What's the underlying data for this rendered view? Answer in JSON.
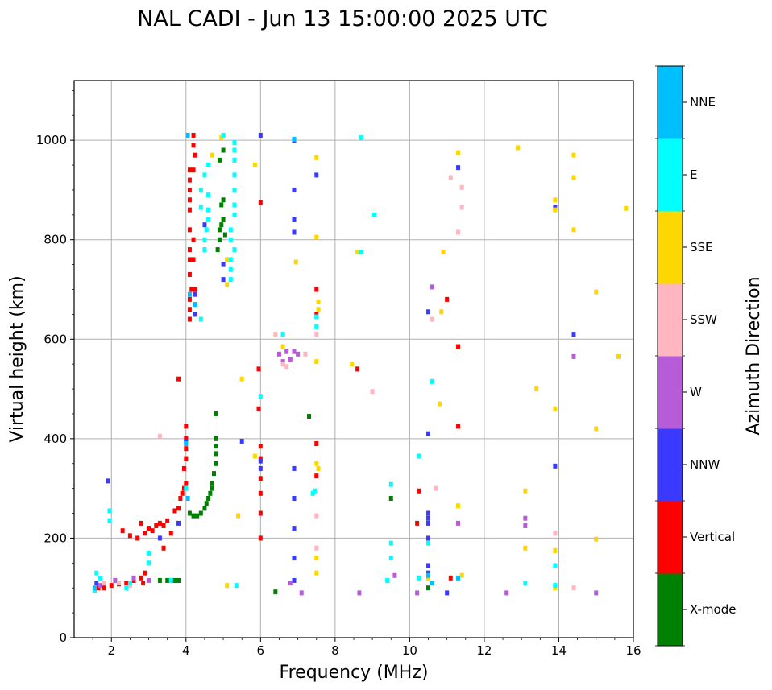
{
  "chart_data": {
    "type": "scatter",
    "title": "NAL CADI - Jun 13 15:00:00 2025 UTC",
    "xlabel": "Frequency (MHz)",
    "ylabel": "Virtual height (km)",
    "xlim": [
      1,
      16
    ],
    "ylim": [
      0,
      1120
    ],
    "xticks": [
      2,
      4,
      6,
      8,
      10,
      12,
      14,
      16
    ],
    "yticks": [
      0,
      200,
      400,
      600,
      800,
      1000
    ],
    "grid": true,
    "colorbar": {
      "title": "Azimuth Direction",
      "categories": [
        {
          "name": "X-mode",
          "color": "#008000"
        },
        {
          "name": "Vertical",
          "color": "#ff0000"
        },
        {
          "name": "NNW",
          "color": "#3a3aff"
        },
        {
          "name": "W",
          "color": "#b65cd8"
        },
        {
          "name": "SSW",
          "color": "#ffb6c1"
        },
        {
          "name": "SSE",
          "color": "#ffd700"
        },
        {
          "name": "E",
          "color": "#00ffff"
        },
        {
          "name": "NNE",
          "color": "#00bfff"
        }
      ]
    },
    "series": [
      {
        "name": "X-mode",
        "points": [
          [
            3.3,
            115
          ],
          [
            3.5,
            115
          ],
          [
            3.6,
            115
          ],
          [
            3.7,
            115
          ],
          [
            3.8,
            115
          ],
          [
            4.1,
            250
          ],
          [
            4.2,
            245
          ],
          [
            4.3,
            245
          ],
          [
            4.4,
            250
          ],
          [
            4.5,
            260
          ],
          [
            4.55,
            270
          ],
          [
            4.6,
            280
          ],
          [
            4.65,
            290
          ],
          [
            4.7,
            300
          ],
          [
            4.7,
            310
          ],
          [
            4.75,
            330
          ],
          [
            4.8,
            350
          ],
          [
            4.8,
            370
          ],
          [
            4.8,
            385
          ],
          [
            4.8,
            400
          ],
          [
            4.8,
            450
          ],
          [
            4.9,
            800
          ],
          [
            4.9,
            820
          ],
          [
            4.95,
            830
          ],
          [
            5.0,
            840
          ],
          [
            4.95,
            870
          ],
          [
            5.0,
            880
          ],
          [
            4.9,
            960
          ],
          [
            5.0,
            980
          ],
          [
            4.85,
            780
          ],
          [
            5.05,
            810
          ],
          [
            6.4,
            92
          ],
          [
            7.3,
            445
          ],
          [
            9.5,
            280
          ],
          [
            10.5,
            100
          ]
        ]
      },
      {
        "name": "Vertical",
        "points": [
          [
            1.55,
            95
          ],
          [
            1.65,
            100
          ],
          [
            1.8,
            100
          ],
          [
            2.0,
            105
          ],
          [
            2.2,
            108
          ],
          [
            2.4,
            110
          ],
          [
            2.6,
            115
          ],
          [
            2.8,
            120
          ],
          [
            2.9,
            130
          ],
          [
            2.85,
            110
          ],
          [
            2.3,
            215
          ],
          [
            2.5,
            205
          ],
          [
            2.7,
            200
          ],
          [
            2.8,
            230
          ],
          [
            2.9,
            210
          ],
          [
            3.0,
            220
          ],
          [
            3.1,
            215
          ],
          [
            3.2,
            225
          ],
          [
            3.3,
            230
          ],
          [
            3.4,
            225
          ],
          [
            3.5,
            235
          ],
          [
            3.6,
            210
          ],
          [
            3.4,
            180
          ],
          [
            3.7,
            255
          ],
          [
            3.8,
            260
          ],
          [
            3.85,
            280
          ],
          [
            3.9,
            290
          ],
          [
            3.95,
            300
          ],
          [
            4.0,
            310
          ],
          [
            3.95,
            340
          ],
          [
            4.0,
            360
          ],
          [
            4.0,
            380
          ],
          [
            4.0,
            400
          ],
          [
            4.0,
            425
          ],
          [
            3.8,
            520
          ],
          [
            4.1,
            640
          ],
          [
            4.1,
            660
          ],
          [
            4.1,
            680
          ],
          [
            4.15,
            700
          ],
          [
            4.1,
            730
          ],
          [
            4.1,
            760
          ],
          [
            4.1,
            780
          ],
          [
            4.1,
            820
          ],
          [
            4.1,
            860
          ],
          [
            4.1,
            880
          ],
          [
            4.1,
            900
          ],
          [
            4.1,
            920
          ],
          [
            4.1,
            940
          ],
          [
            4.25,
            700
          ],
          [
            4.2,
            760
          ],
          [
            4.2,
            800
          ],
          [
            4.2,
            940
          ],
          [
            4.25,
            970
          ],
          [
            4.2,
            990
          ],
          [
            4.2,
            1010
          ],
          [
            6.0,
            200
          ],
          [
            6.0,
            250
          ],
          [
            6.0,
            290
          ],
          [
            6.0,
            320
          ],
          [
            6.0,
            360
          ],
          [
            6.0,
            385
          ],
          [
            5.95,
            460
          ],
          [
            5.95,
            540
          ],
          [
            6.0,
            875
          ],
          [
            7.5,
            325
          ],
          [
            7.5,
            390
          ],
          [
            7.5,
            650
          ],
          [
            7.5,
            700
          ],
          [
            8.6,
            540
          ],
          [
            10.2,
            230
          ],
          [
            10.25,
            295
          ],
          [
            11.1,
            120
          ],
          [
            11.3,
            425
          ],
          [
            11.3,
            585
          ],
          [
            11.0,
            680
          ]
        ]
      },
      {
        "name": "NNW",
        "points": [
          [
            1.6,
            110
          ],
          [
            1.9,
            315
          ],
          [
            3.3,
            200
          ],
          [
            3.8,
            230
          ],
          [
            4.0,
            395
          ],
          [
            4.25,
            650
          ],
          [
            4.25,
            690
          ],
          [
            4.5,
            830
          ],
          [
            5.0,
            720
          ],
          [
            5.0,
            750
          ],
          [
            5.5,
            395
          ],
          [
            6.0,
            340
          ],
          [
            6.0,
            355
          ],
          [
            6.0,
            1010
          ],
          [
            6.9,
            1000
          ],
          [
            6.9,
            900
          ],
          [
            6.9,
            840
          ],
          [
            6.9,
            815
          ],
          [
            6.9,
            340
          ],
          [
            6.9,
            280
          ],
          [
            6.9,
            220
          ],
          [
            6.9,
            160
          ],
          [
            6.9,
            115
          ],
          [
            7.5,
            930
          ],
          [
            10.5,
            250
          ],
          [
            10.5,
            240
          ],
          [
            10.5,
            230
          ],
          [
            10.5,
            200
          ],
          [
            10.5,
            145
          ],
          [
            10.5,
            130
          ],
          [
            10.5,
            410
          ],
          [
            10.5,
            655
          ],
          [
            11.3,
            945
          ],
          [
            11.0,
            90
          ],
          [
            13.9,
            345
          ],
          [
            13.9,
            865
          ],
          [
            14.4,
            610
          ]
        ]
      },
      {
        "name": "W",
        "points": [
          [
            1.7,
            105
          ],
          [
            2.1,
            115
          ],
          [
            2.6,
            120
          ],
          [
            3.0,
            115
          ],
          [
            6.5,
            570
          ],
          [
            6.6,
            555
          ],
          [
            6.7,
            575
          ],
          [
            6.8,
            560
          ],
          [
            6.9,
            575
          ],
          [
            7.0,
            570
          ],
          [
            8.65,
            90
          ],
          [
            9.6,
            125
          ],
          [
            10.2,
            90
          ],
          [
            10.6,
            705
          ],
          [
            11.3,
            230
          ],
          [
            12.6,
            90
          ],
          [
            13.1,
            240
          ],
          [
            13.1,
            225
          ],
          [
            14.4,
            565
          ],
          [
            15.0,
            90
          ],
          [
            6.8,
            110
          ],
          [
            7.1,
            90
          ]
        ]
      },
      {
        "name": "SSW",
        "points": [
          [
            1.8,
            110
          ],
          [
            2.2,
            110
          ],
          [
            2.5,
            105
          ],
          [
            3.3,
            405
          ],
          [
            6.4,
            610
          ],
          [
            6.6,
            550
          ],
          [
            6.7,
            545
          ],
          [
            7.2,
            570
          ],
          [
            7.5,
            610
          ],
          [
            9.0,
            495
          ],
          [
            10.6,
            640
          ],
          [
            10.7,
            300
          ],
          [
            11.1,
            925
          ],
          [
            11.4,
            905
          ],
          [
            11.4,
            865
          ],
          [
            11.3,
            815
          ],
          [
            13.9,
            210
          ],
          [
            14.4,
            100
          ],
          [
            7.5,
            180
          ],
          [
            7.5,
            245
          ]
        ]
      },
      {
        "name": "SSE",
        "points": [
          [
            4.7,
            970
          ],
          [
            4.95,
            1005
          ],
          [
            5.0,
            1010
          ],
          [
            5.1,
            760
          ],
          [
            5.1,
            710
          ],
          [
            5.4,
            245
          ],
          [
            5.1,
            105
          ],
          [
            5.5,
            520
          ],
          [
            5.85,
            950
          ],
          [
            5.85,
            365
          ],
          [
            6.6,
            585
          ],
          [
            6.95,
            755
          ],
          [
            7.5,
            965
          ],
          [
            7.5,
            805
          ],
          [
            7.55,
            675
          ],
          [
            7.55,
            660
          ],
          [
            7.5,
            555
          ],
          [
            7.5,
            350
          ],
          [
            7.55,
            340
          ],
          [
            7.5,
            160
          ],
          [
            7.5,
            130
          ],
          [
            8.45,
            550
          ],
          [
            8.6,
            775
          ],
          [
            10.5,
            120
          ],
          [
            10.8,
            470
          ],
          [
            10.85,
            655
          ],
          [
            10.9,
            775
          ],
          [
            11.3,
            975
          ],
          [
            11.3,
            265
          ],
          [
            11.4,
            125
          ],
          [
            12.9,
            985
          ],
          [
            13.1,
            295
          ],
          [
            13.1,
            180
          ],
          [
            13.4,
            500
          ],
          [
            13.9,
            880
          ],
          [
            13.9,
            860
          ],
          [
            13.9,
            460
          ],
          [
            13.9,
            175
          ],
          [
            13.9,
            100
          ],
          [
            14.4,
            970
          ],
          [
            14.4,
            925
          ],
          [
            14.4,
            820
          ],
          [
            15.0,
            695
          ],
          [
            15.0,
            420
          ],
          [
            15.0,
            198
          ],
          [
            15.6,
            565
          ],
          [
            15.8,
            863
          ]
        ]
      },
      {
        "name": "E",
        "points": [
          [
            1.55,
            95
          ],
          [
            1.6,
            130
          ],
          [
            1.7,
            120
          ],
          [
            1.95,
            255
          ],
          [
            1.95,
            235
          ],
          [
            2.4,
            100
          ],
          [
            2.5,
            110
          ],
          [
            3.0,
            170
          ],
          [
            3.0,
            150
          ],
          [
            3.6,
            115
          ],
          [
            4.0,
            300
          ],
          [
            4.4,
            640
          ],
          [
            4.5,
            780
          ],
          [
            4.5,
            800
          ],
          [
            4.55,
            820
          ],
          [
            4.6,
            840
          ],
          [
            4.6,
            860
          ],
          [
            4.4,
            900
          ],
          [
            4.5,
            930
          ],
          [
            4.6,
            950
          ],
          [
            4.6,
            890
          ],
          [
            4.4,
            865
          ],
          [
            5.2,
            720
          ],
          [
            5.2,
            740
          ],
          [
            5.2,
            760
          ],
          [
            5.3,
            780
          ],
          [
            5.2,
            800
          ],
          [
            5.2,
            820
          ],
          [
            5.3,
            850
          ],
          [
            5.3,
            870
          ],
          [
            5.3,
            900
          ],
          [
            5.3,
            930
          ],
          [
            5.3,
            960
          ],
          [
            5.3,
            980
          ],
          [
            5.3,
            995
          ],
          [
            5.0,
            1010
          ],
          [
            5.35,
            105
          ],
          [
            6.0,
            485
          ],
          [
            6.6,
            610
          ],
          [
            7.5,
            645
          ],
          [
            7.5,
            625
          ],
          [
            7.45,
            295
          ],
          [
            7.4,
            290
          ],
          [
            8.7,
            1005
          ],
          [
            8.7,
            775
          ],
          [
            9.05,
            850
          ],
          [
            9.5,
            190
          ],
          [
            9.5,
            160
          ],
          [
            9.4,
            115
          ],
          [
            9.5,
            308
          ],
          [
            10.25,
            120
          ],
          [
            10.25,
            365
          ],
          [
            10.5,
            190
          ],
          [
            10.6,
            515
          ],
          [
            13.1,
            110
          ],
          [
            13.9,
            145
          ],
          [
            13.9,
            105
          ]
        ]
      },
      {
        "name": "NNE",
        "points": [
          [
            1.55,
            100
          ],
          [
            4.05,
            1010
          ],
          [
            4.0,
            390
          ],
          [
            4.05,
            280
          ],
          [
            4.1,
            690
          ],
          [
            4.25,
            670
          ],
          [
            6.9,
            1002
          ],
          [
            10.5,
            125
          ],
          [
            10.6,
            110
          ],
          [
            11.3,
            120
          ]
        ]
      }
    ]
  }
}
